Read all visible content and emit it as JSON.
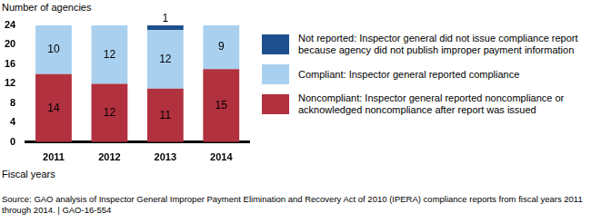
{
  "chart_data": {
    "type": "bar",
    "stacked": true,
    "y_label": "Number of agencies",
    "x_label": "Fiscal years",
    "source": "Source: GAO analysis of Inspector General Improper Payment Elimination and Recovery Act of 2010 (IPERA) compliance reports from fiscal years 2011 through 2014. | GAO-16-554",
    "categories": [
      "2011",
      "2012",
      "2013",
      "2014"
    ],
    "series": [
      {
        "name": "Noncompliant: Inspector general reported noncompliance or acknowledged noncompliance after report was issued",
        "color": "#b1313f",
        "values": [
          14,
          12,
          11,
          15
        ]
      },
      {
        "name": "Compliant: Inspector general reported compliance",
        "color": "#a9d0ef",
        "values": [
          10,
          12,
          12,
          9
        ]
      },
      {
        "name": "Not reported: Inspector general did not issue compliance report because agency did not publish improper payment information",
        "color": "#1d4f8c",
        "values": [
          null,
          null,
          1,
          null
        ]
      }
    ],
    "ylim": [
      0,
      24
    ],
    "yticks": [
      0,
      4,
      8,
      12,
      16,
      20,
      24
    ],
    "grid": false,
    "legend": "right",
    "data_labels": true
  }
}
